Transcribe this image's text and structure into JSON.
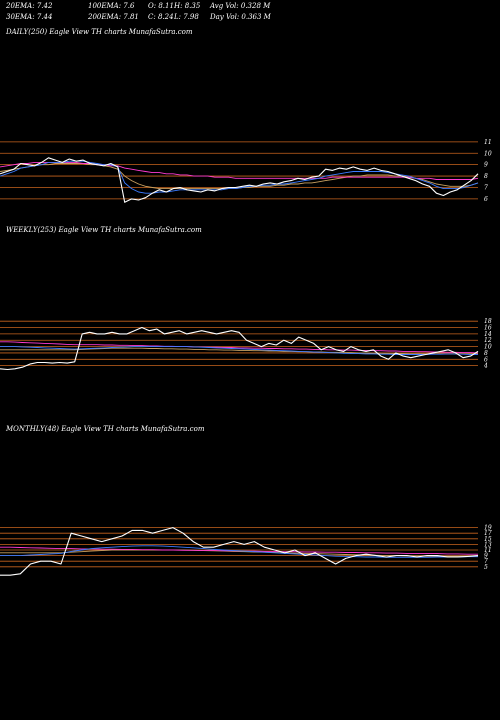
{
  "header": {
    "ema20": "20EMA: 7.42",
    "ema100": "100EMA: 7.6",
    "open": "O: 8.11",
    "high": "H: 8.35",
    "avgvol": "Avg Vol: 0.328 M",
    "ema30": "30EMA: 7.44",
    "ema200": "200EMA: 7.81",
    "close": "C: 8.24",
    "low": "L: 7.98",
    "dayvol": "Day Vol: 0.363 M"
  },
  "colors": {
    "background": "#000000",
    "price": "#ffffff",
    "ema_blue": "#3b7bff",
    "ema_pink": "#ff3bd2",
    "ema_tan": "#c8a060",
    "grid_orange": "#c8641e"
  },
  "chart_data": [
    {
      "type": "line",
      "label": "DAILY(250) Eagle View TH charts MunafaSutra.com",
      "y_ticks": [
        "11",
        "10",
        "9",
        "8",
        "7",
        "6"
      ],
      "y_tick_values": [
        11,
        10,
        9,
        8,
        7,
        6
      ],
      "ylim": [
        5.2,
        11.6
      ],
      "grid": true,
      "series": [
        {
          "color": "#ffffff",
          "values": [
            8.2,
            8.4,
            8.6,
            9.1,
            9.0,
            8.9,
            9.2,
            9.6,
            9.4,
            9.2,
            9.5,
            9.3,
            9.4,
            9.1,
            9.0,
            8.9,
            9.1,
            8.8,
            5.7,
            6.0,
            5.9,
            6.1,
            6.5,
            6.8,
            6.6,
            6.9,
            7.0,
            6.8,
            6.7,
            6.6,
            6.8,
            6.7,
            6.9,
            7.0,
            7.0,
            7.1,
            7.2,
            7.1,
            7.3,
            7.4,
            7.3,
            7.5,
            7.6,
            7.8,
            7.7,
            7.9,
            8.0,
            8.6,
            8.5,
            8.7,
            8.6,
            8.8,
            8.6,
            8.5,
            8.7,
            8.5,
            8.4,
            8.2,
            8.0,
            7.8,
            7.6,
            7.3,
            7.1,
            6.5,
            6.3,
            6.6,
            6.8,
            7.2,
            7.6,
            8.2
          ]
        },
        {
          "color": "#3b7bff",
          "values": [
            8.0,
            8.2,
            8.4,
            8.7,
            8.8,
            8.9,
            9.0,
            9.2,
            9.2,
            9.2,
            9.3,
            9.3,
            9.3,
            9.2,
            9.1,
            9.0,
            9.0,
            8.8,
            7.4,
            6.9,
            6.6,
            6.5,
            6.5,
            6.6,
            6.6,
            6.7,
            6.8,
            6.8,
            6.8,
            6.8,
            6.8,
            6.8,
            6.8,
            6.9,
            6.9,
            7.0,
            7.1,
            7.1,
            7.2,
            7.2,
            7.3,
            7.3,
            7.4,
            7.5,
            7.6,
            7.7,
            7.8,
            8.0,
            8.1,
            8.2,
            8.3,
            8.4,
            8.4,
            8.4,
            8.4,
            8.4,
            8.3,
            8.2,
            8.1,
            8.0,
            7.8,
            7.6,
            7.4,
            7.1,
            6.9,
            6.9,
            6.9,
            7.0,
            7.2,
            7.4
          ]
        },
        {
          "color": "#ff3bd2",
          "values": [
            8.8,
            8.9,
            9.0,
            9.1,
            9.1,
            9.2,
            9.2,
            9.2,
            9.2,
            9.2,
            9.2,
            9.2,
            9.1,
            9.1,
            9.0,
            9.0,
            8.9,
            8.9,
            8.7,
            8.6,
            8.5,
            8.4,
            8.3,
            8.3,
            8.2,
            8.2,
            8.1,
            8.1,
            8.0,
            8.0,
            8.0,
            7.9,
            7.9,
            7.9,
            7.8,
            7.8,
            7.8,
            7.8,
            7.8,
            7.8,
            7.8,
            7.8,
            7.8,
            7.8,
            7.8,
            7.8,
            7.8,
            7.8,
            7.9,
            7.9,
            7.9,
            7.9,
            7.9,
            7.9,
            7.9,
            7.9,
            7.9,
            7.9,
            7.9,
            7.9,
            7.8,
            7.8,
            7.8,
            7.7,
            7.7,
            7.7,
            7.7,
            7.7,
            7.7,
            7.8
          ]
        },
        {
          "color": "#c8a060",
          "values": [
            8.4,
            8.5,
            8.6,
            8.7,
            8.8,
            8.9,
            9.0,
            9.0,
            9.1,
            9.1,
            9.1,
            9.1,
            9.1,
            9.0,
            9.0,
            8.9,
            8.8,
            8.6,
            8.0,
            7.6,
            7.3,
            7.1,
            7.0,
            6.9,
            6.9,
            6.9,
            6.9,
            6.9,
            6.9,
            6.9,
            6.9,
            6.9,
            6.9,
            6.9,
            6.9,
            7.0,
            7.0,
            7.1,
            7.1,
            7.1,
            7.2,
            7.2,
            7.3,
            7.3,
            7.4,
            7.4,
            7.5,
            7.6,
            7.7,
            7.8,
            7.9,
            8.0,
            8.0,
            8.1,
            8.1,
            8.1,
            8.1,
            8.0,
            8.0,
            7.9,
            7.8,
            7.7,
            7.5,
            7.3,
            7.2,
            7.1,
            7.1,
            7.1,
            7.2,
            7.4
          ]
        }
      ]
    },
    {
      "type": "line",
      "label": "WEEKLY(253) Eagle View TH charts MunafaSutra.com",
      "y_ticks": [
        "18",
        "16",
        "14",
        "12",
        "10",
        "8",
        "6",
        "4"
      ],
      "y_tick_values": [
        18,
        16,
        14,
        12,
        10,
        8,
        6,
        4
      ],
      "ylim": [
        2,
        19
      ],
      "grid": true,
      "series": [
        {
          "color": "#ffffff",
          "values": [
            3,
            2.8,
            3,
            3.5,
            4.5,
            5,
            5,
            4.8,
            5,
            4.8,
            5.2,
            14,
            14.5,
            14,
            14,
            14.5,
            14,
            14,
            15,
            16,
            15,
            15.5,
            14,
            14.5,
            15,
            14,
            14.5,
            15,
            14.5,
            14,
            14.5,
            15,
            14.5,
            12,
            11,
            10,
            11,
            10.5,
            12,
            11,
            13,
            12,
            11,
            9,
            10,
            9,
            8.5,
            10,
            9,
            8.5,
            9,
            7,
            6,
            8,
            7,
            6.5,
            7,
            7.5,
            8,
            8.5,
            9,
            8,
            6.5,
            7,
            8.5
          ]
        },
        {
          "color": "#3b7bff",
          "values": [
            10,
            10,
            10,
            9.9,
            9.8,
            9.7,
            9.6,
            9.5,
            9.4,
            9.3,
            9.2,
            9.3,
            9.4,
            9.5,
            9.6,
            9.7,
            9.8,
            9.9,
            10,
            10,
            10,
            10,
            10,
            10,
            10,
            10,
            9.9,
            9.8,
            9.7,
            9.6,
            9.5,
            9.4,
            9.3,
            9.2,
            9.1,
            9,
            8.9,
            8.8,
            8.7,
            8.6,
            8.5,
            8.4,
            8.3,
            8.2,
            8.1,
            8,
            7.9,
            7.8,
            7.8,
            7.7,
            7.7,
            7.6,
            7.6,
            7.5,
            7.5,
            7.5,
            7.5,
            7.5,
            7.6,
            7.6,
            7.7,
            7.7,
            7.6,
            7.5,
            7.5
          ]
        },
        {
          "color": "#ff3bd2",
          "values": [
            11.5,
            11.5,
            11.4,
            11.3,
            11.2,
            11.1,
            11,
            10.9,
            10.8,
            10.7,
            10.6,
            10.6,
            10.6,
            10.6,
            10.5,
            10.5,
            10.4,
            10.4,
            10.3,
            10.3,
            10.2,
            10.2,
            10.1,
            10.1,
            10,
            10,
            9.9,
            9.9,
            9.8,
            9.8,
            9.7,
            9.7,
            9.6,
            9.6,
            9.5,
            9.5,
            9.4,
            9.4,
            9.3,
            9.3,
            9.2,
            9.2,
            9.1,
            9.1,
            9,
            9,
            8.9,
            8.9,
            8.8,
            8.8,
            8.7,
            8.7,
            8.6,
            8.6,
            8.5,
            8.5,
            8.4,
            8.4,
            8.3,
            8.3,
            8.2,
            8.2,
            8.1,
            8.1,
            8
          ]
        },
        {
          "color": "#c8a060",
          "values": [
            9,
            9,
            9,
            9,
            9,
            9,
            9,
            9,
            9,
            9,
            9,
            9.1,
            9.2,
            9.3,
            9.4,
            9.5,
            9.5,
            9.5,
            9.5,
            9.5,
            9.4,
            9.4,
            9.3,
            9.3,
            9.2,
            9.2,
            9.1,
            9.1,
            9,
            9,
            8.9,
            8.9,
            8.8,
            8.8,
            8.7,
            8.7,
            8.6,
            8.6,
            8.5,
            8.5,
            8.4,
            8.4,
            8.3,
            8.3,
            8.2,
            8.2,
            8.1,
            8.1,
            8,
            8,
            7.9,
            7.9,
            7.8,
            7.8,
            7.8,
            7.7,
            7.7,
            7.7,
            7.7,
            7.7,
            7.7,
            7.7,
            7.7,
            7.7,
            7.7
          ]
        }
      ]
    },
    {
      "type": "line",
      "label": "MONTHLY(48) Eagle View TH charts MunafaSutra.com",
      "y_ticks": [
        "19",
        "17",
        "15",
        "13",
        "11",
        "9",
        "7",
        "5"
      ],
      "y_tick_values": [
        19,
        17,
        15,
        13,
        11,
        9,
        7,
        5
      ],
      "ylim": [
        1,
        21
      ],
      "grid": true,
      "series": [
        {
          "color": "#ffffff",
          "values": [
            2,
            2,
            2.5,
            6,
            7,
            7,
            6,
            17,
            16,
            15,
            14,
            15,
            16,
            18,
            18,
            17,
            18,
            19,
            17,
            14,
            12,
            12,
            13,
            14,
            13,
            14,
            12,
            11,
            10,
            11,
            9,
            10,
            8,
            6,
            8,
            9,
            9.5,
            9,
            8.5,
            9,
            9,
            8.5,
            9,
            9,
            8.5,
            8.5,
            8.7,
            9
          ]
        },
        {
          "color": "#3b7bff",
          "values": [
            9,
            9,
            9,
            9.2,
            9.4,
            9.6,
            9.8,
            10.5,
            11,
            11.5,
            11.8,
            12,
            12.2,
            12.4,
            12.5,
            12.5,
            12.4,
            12.2,
            12,
            11.8,
            11.5,
            11.2,
            11,
            10.8,
            10.6,
            10.4,
            10.2,
            10,
            9.8,
            9.6,
            9.4,
            9.2,
            9,
            8.8,
            8.7,
            8.6,
            8.5,
            8.5,
            8.4,
            8.4,
            8.4,
            8.4,
            8.4,
            8.5,
            8.5,
            8.5,
            8.6,
            8.6
          ]
        },
        {
          "color": "#ff3bd2",
          "values": [
            12,
            12,
            11.9,
            11.8,
            11.7,
            11.6,
            11.5,
            11.5,
            11.4,
            11.4,
            11.3,
            11.3,
            11.2,
            11.2,
            11.1,
            11.1,
            11,
            11,
            10.9,
            10.9,
            10.8,
            10.8,
            10.7,
            10.7,
            10.6,
            10.6,
            10.5,
            10.5,
            10.4,
            10.4,
            10.3,
            10.3,
            10.2,
            10.2,
            10.1,
            10.1,
            10,
            10,
            9.9,
            9.9,
            9.8,
            9.8,
            9.7,
            9.7,
            9.6,
            9.6,
            9.5,
            9.5
          ]
        },
        {
          "color": "#c8a060",
          "values": [
            10,
            10,
            10,
            10,
            10,
            10,
            10,
            10.2,
            10.4,
            10.6,
            10.8,
            11,
            11,
            11,
            11,
            11,
            11,
            11,
            11,
            10.9,
            10.8,
            10.7,
            10.6,
            10.5,
            10.4,
            10.3,
            10.2,
            10.1,
            10,
            9.9,
            9.8,
            9.7,
            9.6,
            9.5,
            9.4,
            9.3,
            9.2,
            9.1,
            9,
            9,
            8.9,
            8.9,
            8.8,
            8.8,
            8.8,
            8.8,
            8.8,
            8.8
          ]
        }
      ]
    }
  ]
}
